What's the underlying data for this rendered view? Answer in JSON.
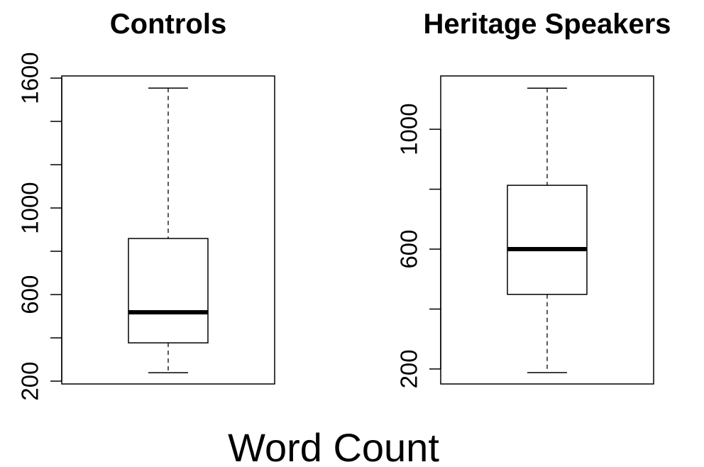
{
  "caption": "Word Count",
  "chart_data": [
    {
      "type": "box",
      "title": "Controls",
      "stats": {
        "whislo": 239,
        "q1": 377,
        "median": 518,
        "q3": 859,
        "whishi": 1554
      },
      "ylim": [
        187,
        1610
      ],
      "yticks": [
        200,
        {
          "value": 400,
          "label": null
        },
        600,
        {
          "value": 800,
          "label": null
        },
        1000,
        {
          "value": 1200,
          "label": null
        },
        {
          "value": 1400,
          "label": null
        },
        1600
      ]
    },
    {
      "type": "box",
      "title": "Heritage Speakers",
      "stats": {
        "whislo": 188,
        "q1": 449,
        "median": 600,
        "q3": 813,
        "whishi": 1137
      },
      "ylim": [
        150,
        1178
      ],
      "yticks": [
        200,
        {
          "value": 400,
          "label": null
        },
        600,
        {
          "value": 800,
          "label": null
        },
        1000
      ]
    }
  ]
}
